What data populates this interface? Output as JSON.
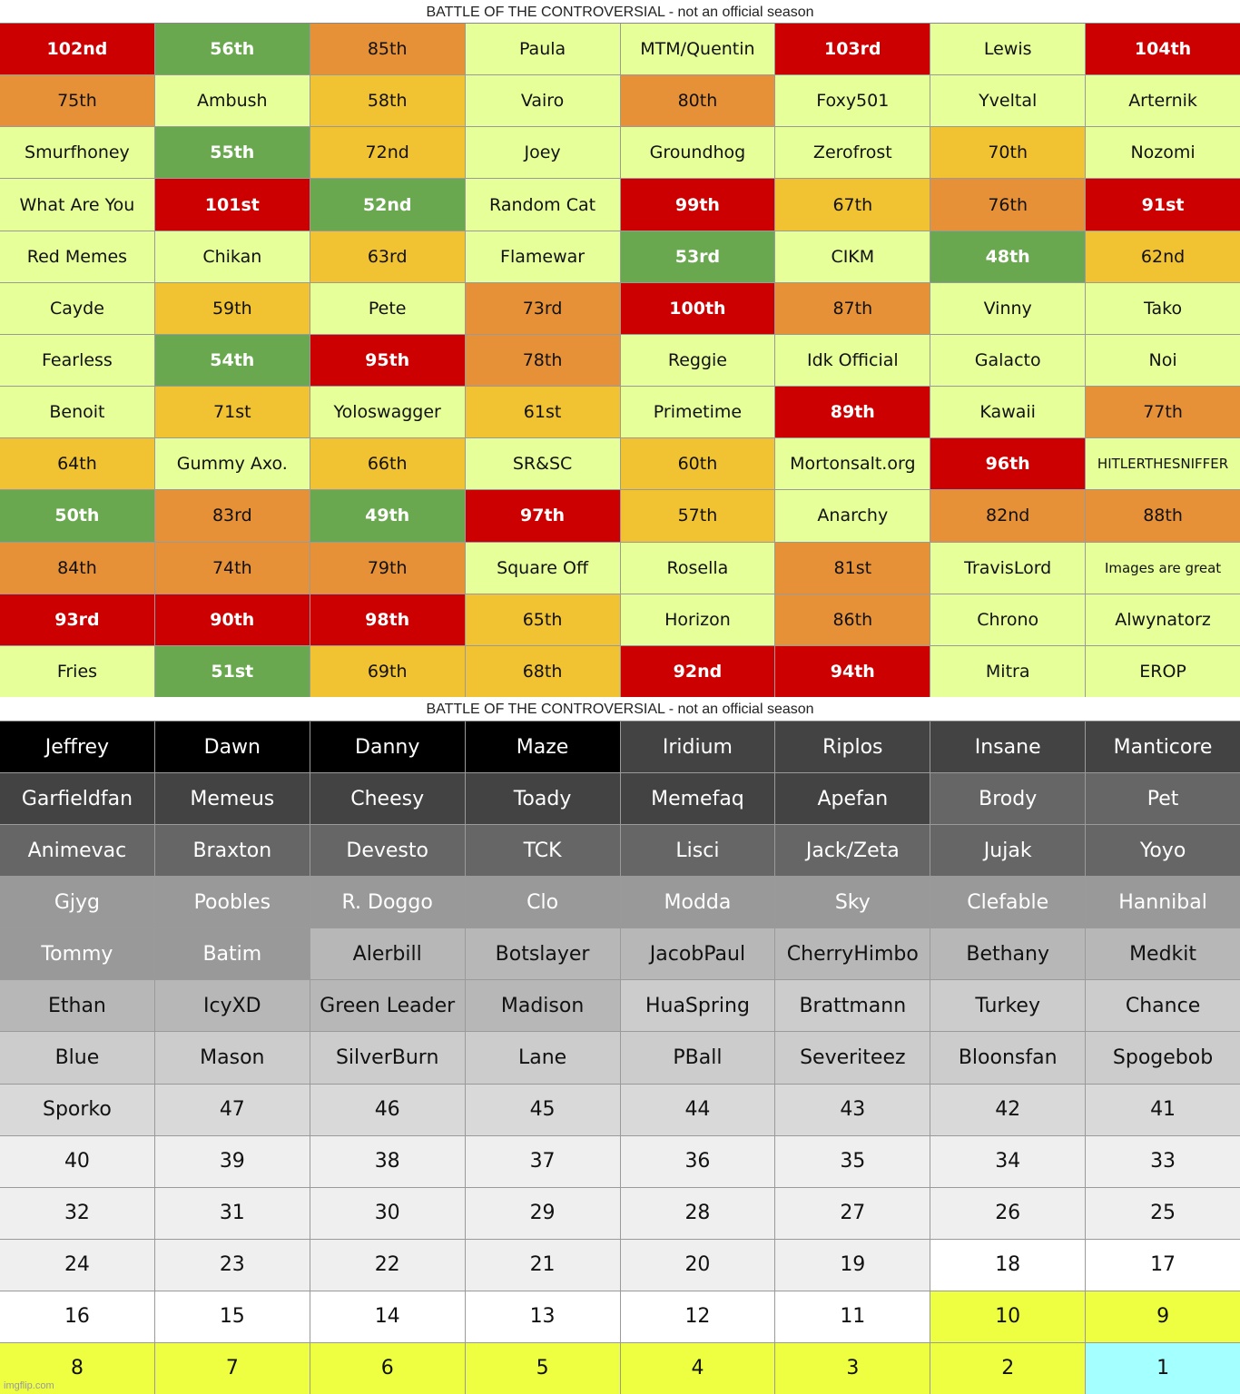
{
  "tables": [
    {
      "title": "BATTLE OF THE CONTROVERSIAL - not an official season",
      "rows": [
        [
          "102nd",
          "56th",
          "85th",
          "Paula",
          "MTM/Quentin",
          "103rd",
          "Lewis",
          "104th"
        ],
        [
          "75th",
          "Ambush",
          "58th",
          "Vairo",
          "80th",
          "Foxy501",
          "Yveltal",
          "Arternik"
        ],
        [
          "Smurfhoney",
          "55th",
          "72nd",
          "Joey",
          "Groundhog",
          "Zerofrost",
          "70th",
          "Nozomi"
        ],
        [
          "What Are You",
          "101st",
          "52nd",
          "Random Cat",
          "99th",
          "67th",
          "76th",
          "91st"
        ],
        [
          "Red Memes",
          "Chikan",
          "63rd",
          "Flamewar",
          "53rd",
          "CIKM",
          "48th",
          "62nd"
        ],
        [
          "Cayde",
          "59th",
          "Pete",
          "73rd",
          "100th",
          "87th",
          "Vinny",
          "Tako"
        ],
        [
          "Fearless",
          "54th",
          "95th",
          "78th",
          "Reggie",
          "Idk Official",
          "Galacto",
          "Noi"
        ],
        [
          "Benoit",
          "71st",
          "Yoloswagger",
          "61st",
          "Primetime",
          "89th",
          "Kawaii",
          "77th"
        ],
        [
          "64th",
          "Gummy Axo.",
          "66th",
          "SR&SC",
          "60th",
          "Mortonsalt.org",
          "96th",
          "HITLERTHESNIFFER"
        ],
        [
          "50th",
          "83rd",
          "49th",
          "97th",
          "57th",
          "Anarchy",
          "82nd",
          "88th"
        ],
        [
          "84th",
          "74th",
          "79th",
          "Square Off",
          "Rosella",
          "81st",
          "TravisLord",
          "Images are great"
        ],
        [
          "93rd",
          "90th",
          "98th",
          "65th",
          "Horizon",
          "86th",
          "Chrono",
          "Alwynatorz"
        ],
        [
          "Fries",
          "51st",
          "69th",
          "68th",
          "92nd",
          "94th",
          "Mitra",
          "EROP"
        ]
      ],
      "fills": [
        [
          "#cc0000",
          "#6aa84f",
          "#e69138",
          "#e6ff99",
          "#e6ff99",
          "#cc0000",
          "#e6ff99",
          "#cc0000"
        ],
        [
          "#e69138",
          "#e6ff99",
          "#f1c232",
          "#e6ff99",
          "#e69138",
          "#e6ff99",
          "#e6ff99",
          "#e6ff99"
        ],
        [
          "#e6ff99",
          "#6aa84f",
          "#f1c232",
          "#e6ff99",
          "#e6ff99",
          "#e6ff99",
          "#f1c232",
          "#e6ff99"
        ],
        [
          "#e6ff99",
          "#cc0000",
          "#6aa84f",
          "#e6ff99",
          "#cc0000",
          "#f1c232",
          "#e69138",
          "#cc0000"
        ],
        [
          "#e6ff99",
          "#e6ff99",
          "#f1c232",
          "#e6ff99",
          "#6aa84f",
          "#e6ff99",
          "#6aa84f",
          "#f1c232"
        ],
        [
          "#e6ff99",
          "#f1c232",
          "#e6ff99",
          "#e69138",
          "#cc0000",
          "#e69138",
          "#e6ff99",
          "#e6ff99"
        ],
        [
          "#e6ff99",
          "#6aa84f",
          "#cc0000",
          "#e69138",
          "#e6ff99",
          "#e6ff99",
          "#e6ff99",
          "#e6ff99"
        ],
        [
          "#e6ff99",
          "#f1c232",
          "#e6ff99",
          "#f1c232",
          "#e6ff99",
          "#cc0000",
          "#e6ff99",
          "#e69138"
        ],
        [
          "#f1c232",
          "#e6ff99",
          "#f1c232",
          "#e6ff99",
          "#f1c232",
          "#e6ff99",
          "#cc0000",
          "#e6ff99"
        ],
        [
          "#6aa84f",
          "#e69138",
          "#6aa84f",
          "#cc0000",
          "#f1c232",
          "#e6ff99",
          "#e69138",
          "#e69138"
        ],
        [
          "#e69138",
          "#e69138",
          "#e69138",
          "#e6ff99",
          "#e6ff99",
          "#e69138",
          "#e6ff99",
          "#e6ff99"
        ],
        [
          "#cc0000",
          "#cc0000",
          "#cc0000",
          "#f1c232",
          "#e6ff99",
          "#e69138",
          "#e6ff99",
          "#e6ff99"
        ],
        [
          "#e6ff99",
          "#6aa84f",
          "#f1c232",
          "#f1c232",
          "#cc0000",
          "#cc0000",
          "#e6ff99",
          "#e6ff99"
        ]
      ]
    },
    {
      "title": "BATTLE OF THE CONTROVERSIAL - not an official season",
      "rows": [
        [
          "Jeffrey",
          "Dawn",
          "Danny",
          "Maze",
          "Iridium",
          "Riplos",
          "Insane",
          "Manticore"
        ],
        [
          "Garfieldfan",
          "Memeus",
          "Cheesy",
          "Toady",
          "Memefaq",
          "Apefan",
          "Brody",
          "Pet"
        ],
        [
          "Animevac",
          "Braxton",
          "Devesto",
          "TCK",
          "Lisci",
          "Jack/Zeta",
          "Jujak",
          "Yoyo"
        ],
        [
          "Gjyg",
          "Poobles",
          "R. Doggo",
          "Clo",
          "Modda",
          "Sky",
          "Clefable",
          "Hannibal"
        ],
        [
          "Tommy",
          "Batim",
          "Alerbill",
          "Botslayer",
          "JacobPaul",
          "CherryHimbo",
          "Bethany",
          "Medkit"
        ],
        [
          "Ethan",
          "IcyXD",
          "Green Leader",
          "Madison",
          "HuaSpring",
          "Brattmann",
          "Turkey",
          "Chance"
        ],
        [
          "Blue",
          "Mason",
          "SilverBurn",
          "Lane",
          "PBall",
          "Severiteez",
          "Bloonsfan",
          "Spogebob"
        ],
        [
          "Sporko",
          47,
          46,
          45,
          44,
          43,
          42,
          41
        ],
        [
          40,
          39,
          38,
          37,
          36,
          35,
          34,
          33
        ],
        [
          32,
          31,
          30,
          29,
          28,
          27,
          26,
          25
        ],
        [
          24,
          23,
          22,
          21,
          20,
          19,
          18,
          17
        ],
        [
          16,
          15,
          14,
          13,
          12,
          11,
          10,
          9
        ],
        [
          8,
          7,
          6,
          5,
          4,
          3,
          2,
          1
        ]
      ],
      "fills": [
        [
          "#000000",
          "#000000",
          "#000000",
          "#000000",
          "#434343",
          "#434343",
          "#434343",
          "#434343"
        ],
        [
          "#434343",
          "#434343",
          "#434343",
          "#434343",
          "#434343",
          "#434343",
          "#666666",
          "#666666"
        ],
        [
          "#666666",
          "#666666",
          "#666666",
          "#666666",
          "#666666",
          "#666666",
          "#666666",
          "#666666"
        ],
        [
          "#999999",
          "#999999",
          "#999999",
          "#999999",
          "#999999",
          "#999999",
          "#999999",
          "#999999"
        ],
        [
          "#999999",
          "#999999",
          "#b7b7b7",
          "#b7b7b7",
          "#b7b7b7",
          "#b7b7b7",
          "#b7b7b7",
          "#b7b7b7"
        ],
        [
          "#b7b7b7",
          "#b7b7b7",
          "#b7b7b7",
          "#b7b7b7",
          "#cccccc",
          "#cccccc",
          "#cccccc",
          "#cccccc"
        ],
        [
          "#cccccc",
          "#cccccc",
          "#cccccc",
          "#cccccc",
          "#cccccc",
          "#cccccc",
          "#cccccc",
          "#cccccc"
        ],
        [
          "#d9d9d9",
          "#d9d9d9",
          "#d9d9d9",
          "#d9d9d9",
          "#d9d9d9",
          "#d9d9d9",
          "#d9d9d9",
          "#d9d9d9"
        ],
        [
          "#efefef",
          "#efefef",
          "#efefef",
          "#efefef",
          "#efefef",
          "#efefef",
          "#efefef",
          "#efefef"
        ],
        [
          "#efefef",
          "#efefef",
          "#efefef",
          "#efefef",
          "#efefef",
          "#efefef",
          "#efefef",
          "#efefef"
        ],
        [
          "#efefef",
          "#efefef",
          "#efefef",
          "#efefef",
          "#efefef",
          "#efefef",
          "#ffffff",
          "#ffffff"
        ],
        [
          "#ffffff",
          "#ffffff",
          "#ffffff",
          "#ffffff",
          "#ffffff",
          "#ffffff",
          "#eeff41",
          "#eeff41"
        ],
        [
          "#eeff41",
          "#eeff41",
          "#eeff41",
          "#eeff41",
          "#eeff41",
          "#eeff41",
          "#eeff41",
          "#a4ffff"
        ]
      ]
    }
  ],
  "watermark": "imgflip.com"
}
